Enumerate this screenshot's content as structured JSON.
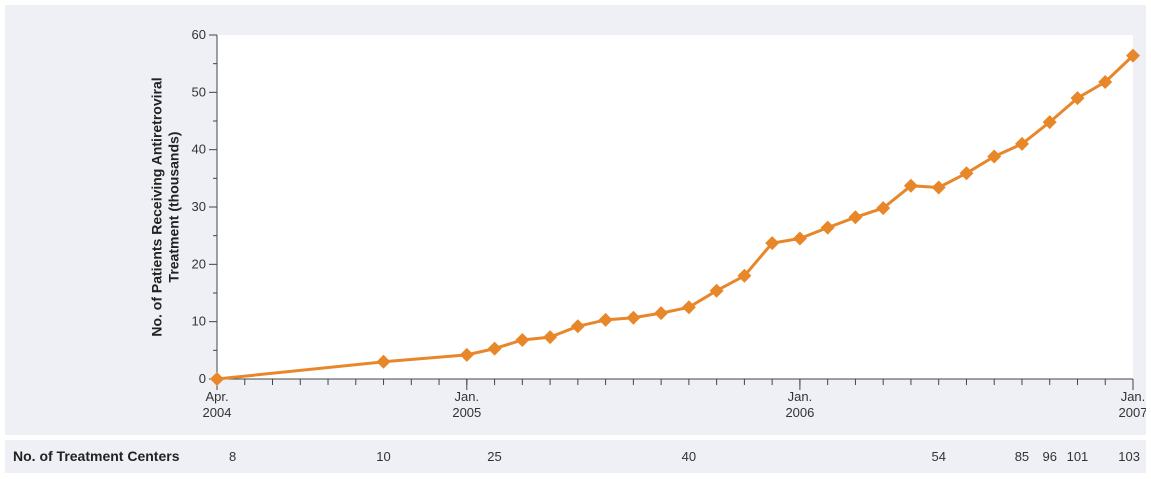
{
  "chart_data": {
    "type": "line",
    "ylabel_lines": [
      "No. of Patients Receiving Antiretroviral",
      "Treatment (thousands)"
    ],
    "ylim": [
      0,
      60
    ],
    "yticks": [
      0,
      10,
      20,
      30,
      40,
      50,
      60
    ],
    "xlim": [
      "2004-04",
      "2007-01"
    ],
    "x_tick_labels": [
      {
        "month": "2004-04",
        "lines": [
          "Apr.",
          "2004"
        ]
      },
      {
        "month": "2005-01",
        "lines": [
          "Jan.",
          "2005"
        ]
      },
      {
        "month": "2006-01",
        "lines": [
          "Jan.",
          "2006"
        ]
      },
      {
        "month": "2007-01",
        "lines": [
          "Jan.",
          "2007"
        ]
      }
    ],
    "x_minor_ticks_monthly": true,
    "grid": false,
    "series_color": "#e8872a",
    "marker": "diamond",
    "series": [
      {
        "x": [
          "2004-04",
          "2004-10",
          "2005-01",
          "2005-02",
          "2005-03",
          "2005-04",
          "2005-05",
          "2005-06",
          "2005-07",
          "2005-08",
          "2005-09",
          "2005-10",
          "2005-11",
          "2005-12",
          "2006-01",
          "2006-02",
          "2006-03",
          "2006-04",
          "2006-05",
          "2006-06",
          "2006-07",
          "2006-08",
          "2006-09",
          "2006-10",
          "2006-11",
          "2006-12",
          "2007-01"
        ],
        "values": [
          0,
          3.0,
          4.2,
          5.3,
          6.8,
          7.3,
          9.2,
          10.3,
          10.7,
          11.5,
          12.5,
          15.4,
          18.0,
          23.7,
          24.5,
          26.4,
          28.2,
          29.8,
          33.7,
          33.4,
          35.9,
          38.8,
          41.0,
          44.8,
          49.0,
          51.8,
          56.4
        ]
      }
    ],
    "treatment_centers": {
      "title": "No. of Treatment Centers",
      "entries": [
        {
          "month": "2004-04",
          "count": "8"
        },
        {
          "month": "2004-10",
          "count": "10"
        },
        {
          "month": "2005-02",
          "count": "25"
        },
        {
          "month": "2005-09",
          "count": "40"
        },
        {
          "month": "2006-06",
          "count": "54"
        },
        {
          "month": "2006-09",
          "count": "85"
        },
        {
          "month": "2006-10",
          "count": "96"
        },
        {
          "month": "2006-11",
          "count": "101"
        },
        {
          "month": "2007-01",
          "count": "103"
        }
      ]
    }
  }
}
